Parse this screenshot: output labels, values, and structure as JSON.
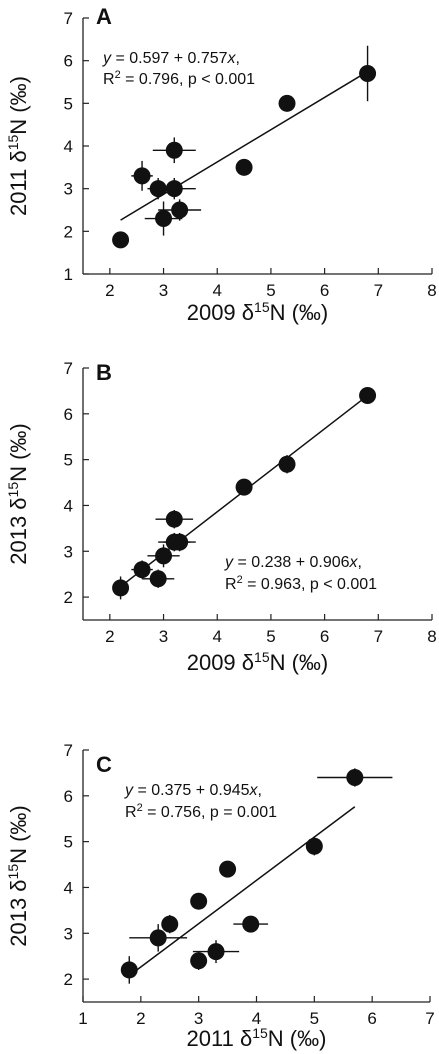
{
  "chart_data": [
    {
      "type": "scatter",
      "panel": "A",
      "xlabel": "2009 δ15N (‰)",
      "ylabel": "2011 δ15N (‰)",
      "xlim": [
        1.5,
        8
      ],
      "ylim": [
        1,
        7
      ],
      "xticks": [
        2,
        3,
        4,
        5,
        6,
        7,
        8
      ],
      "yticks": [
        1,
        2,
        3,
        4,
        5,
        6,
        7
      ],
      "equation_line1": "y = 0.597 + 0.757x,",
      "equation_line2": "R2 = 0.796, p < 0.001",
      "fit": {
        "intercept": 0.597,
        "slope": 0.757,
        "x_range": [
          2.2,
          6.8
        ]
      },
      "points": [
        {
          "x": 2.2,
          "y": 1.8
        },
        {
          "x": 2.6,
          "y": 3.3,
          "xerr": 0.2,
          "yerr": 0.35
        },
        {
          "x": 2.9,
          "y": 3.0,
          "xerr": 0.2,
          "yerr": 0.25
        },
        {
          "x": 3.0,
          "y": 2.3,
          "xerr": 0.35,
          "yerr": 0.4
        },
        {
          "x": 3.2,
          "y": 3.9,
          "xerr": 0.4,
          "yerr": 0.3
        },
        {
          "x": 3.2,
          "y": 3.0,
          "xerr": 0.4,
          "yerr": 0.25
        },
        {
          "x": 3.3,
          "y": 2.5,
          "xerr": 0.4,
          "yerr": 0.25
        },
        {
          "x": 4.5,
          "y": 3.5
        },
        {
          "x": 5.3,
          "y": 5.0
        },
        {
          "x": 6.8,
          "y": 5.7,
          "yerr": 0.65
        }
      ]
    },
    {
      "type": "scatter",
      "panel": "B",
      "xlabel": "2009 δ15N (‰)",
      "ylabel": "2013 δ15N (‰)",
      "xlim": [
        1.5,
        8
      ],
      "ylim": [
        1.5,
        7
      ],
      "xticks": [
        2,
        3,
        4,
        5,
        6,
        7,
        8
      ],
      "yticks": [
        2,
        3,
        4,
        5,
        6,
        7
      ],
      "equation_line1": "y = 0.238 + 0.906x,",
      "equation_line2": "R2 = 0.963, p < 0.001",
      "fit": {
        "intercept": 0.238,
        "slope": 0.906,
        "x_range": [
          2.2,
          6.8
        ]
      },
      "points": [
        {
          "x": 2.2,
          "y": 2.2,
          "yerr": 0.25
        },
        {
          "x": 2.6,
          "y": 2.6,
          "xerr": 0.2,
          "yerr": 0.2
        },
        {
          "x": 2.9,
          "y": 2.4,
          "xerr": 0.3,
          "yerr": 0.2
        },
        {
          "x": 3.0,
          "y": 2.9,
          "xerr": 0.3,
          "yerr": 0.25
        },
        {
          "x": 3.2,
          "y": 3.7,
          "xerr": 0.35,
          "yerr": 0.2
        },
        {
          "x": 3.2,
          "y": 3.2,
          "xerr": 0.3,
          "yerr": 0.2
        },
        {
          "x": 3.3,
          "y": 3.2,
          "xerr": 0.3,
          "yerr": 0.2
        },
        {
          "x": 4.5,
          "y": 4.4
        },
        {
          "x": 5.3,
          "y": 4.9,
          "yerr": 0.2
        },
        {
          "x": 6.8,
          "y": 6.4,
          "yerr": 0.15
        }
      ]
    },
    {
      "type": "scatter",
      "panel": "C",
      "xlabel": "2011 δ15N (‰)",
      "ylabel": "2013 δ15N (‰)",
      "xlim": [
        1,
        7
      ],
      "ylim": [
        1.5,
        7
      ],
      "xticks": [
        1,
        2,
        3,
        4,
        5,
        6,
        7
      ],
      "yticks": [
        2,
        3,
        4,
        5,
        6,
        7
      ],
      "equation_line1": "y = 0.375 + 0.945x,",
      "equation_line2": "R2 = 0.756, p = 0.001",
      "fit": {
        "intercept": 0.375,
        "slope": 0.945,
        "x_range": [
          1.8,
          5.7
        ]
      },
      "points": [
        {
          "x": 1.8,
          "y": 2.2,
          "yerr": 0.3
        },
        {
          "x": 2.3,
          "y": 2.9,
          "xerr": 0.5,
          "yerr": 0.3
        },
        {
          "x": 2.5,
          "y": 3.2,
          "yerr": 0.2
        },
        {
          "x": 3.0,
          "y": 3.7
        },
        {
          "x": 3.0,
          "y": 2.4,
          "yerr": 0.2
        },
        {
          "x": 3.3,
          "y": 2.6,
          "xerr": 0.4,
          "yerr": 0.25
        },
        {
          "x": 3.5,
          "y": 4.4
        },
        {
          "x": 3.9,
          "y": 3.2,
          "xerr": 0.3
        },
        {
          "x": 5.0,
          "y": 4.9,
          "yerr": 0.2
        },
        {
          "x": 5.7,
          "y": 6.4,
          "xerr": 0.65,
          "yerr": 0.2
        }
      ]
    }
  ]
}
